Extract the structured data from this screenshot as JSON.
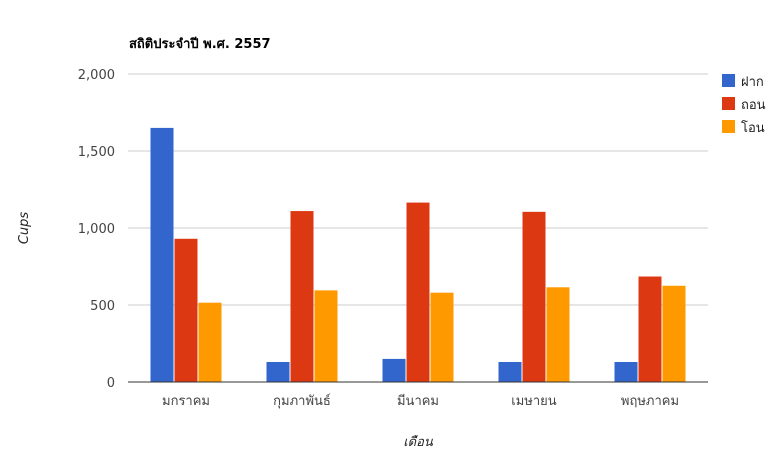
{
  "chart_data": {
    "type": "bar",
    "title": "สถิติประจำปี พ.ศ. 2557",
    "xlabel": "เดือน",
    "ylabel": "Cups",
    "ylim": [
      0,
      2000
    ],
    "yticks": [
      0,
      500,
      1000,
      1500,
      2000
    ],
    "ytick_labels": [
      "0",
      "500",
      "1,000",
      "1,500",
      "2,000"
    ],
    "grid": true,
    "legend_position": "right",
    "categories": [
      "มกราคม",
      "กุมภาพันธ์",
      "มีนาคม",
      "เมษายน",
      "พฤษภาคม"
    ],
    "series": [
      {
        "name": "ฝาก",
        "color": "#3366cc",
        "values": [
          1650,
          130,
          150,
          130,
          130
        ]
      },
      {
        "name": "ถอน",
        "color": "#dc3912",
        "values": [
          930,
          1110,
          1165,
          1105,
          685
        ]
      },
      {
        "name": "โอน",
        "color": "#ff9900",
        "values": [
          515,
          595,
          580,
          615,
          625
        ]
      }
    ]
  }
}
